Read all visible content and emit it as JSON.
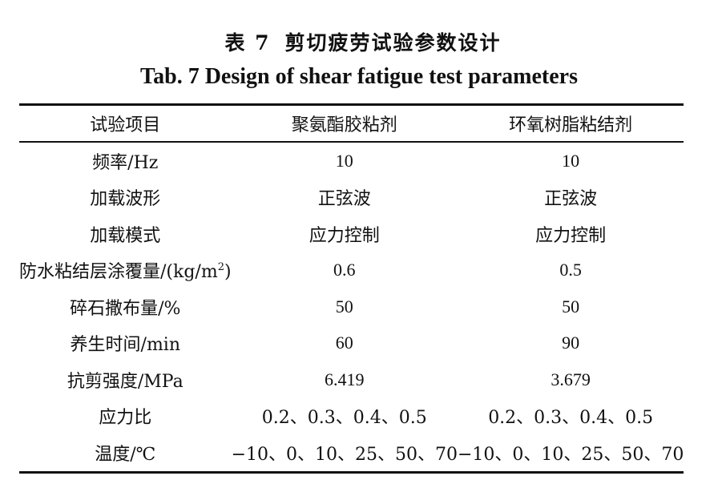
{
  "title": {
    "prefix": "表 7",
    "text": "剪切疲劳试验参数设计",
    "english": "Tab. 7 Design of shear fatigue test parameters"
  },
  "table": {
    "headers": [
      "试验项目",
      "聚氨酯胶粘剂",
      "环氧树脂粘结剂"
    ],
    "rows": [
      {
        "param": "频率/Hz",
        "a": "10",
        "b": "10"
      },
      {
        "param": "加载波形",
        "a": "正弦波",
        "b": "正弦波"
      },
      {
        "param": "加载模式",
        "a": "应力控制",
        "b": "应力控制"
      },
      {
        "param": "防水粘结层涂覆量/(kg/m",
        "param_sup": "2",
        "param_end": ")",
        "a": "0.6",
        "b": "0.5"
      },
      {
        "param": "碎石撒布量/%",
        "a": "50",
        "b": "50"
      },
      {
        "param": "养生时间/min",
        "a": "60",
        "b": "90"
      },
      {
        "param": "抗剪强度/MPa",
        "a": "6.419",
        "b": "3.679"
      },
      {
        "param": "应力比",
        "a": "0.2、0.3、0.4、0.5",
        "b": "0.2、0.3、0.4、0.5"
      },
      {
        "param": "温度/℃",
        "a": "−10、0、10、25、50、70",
        "b": "−10、0、10、25、50、70"
      }
    ]
  }
}
